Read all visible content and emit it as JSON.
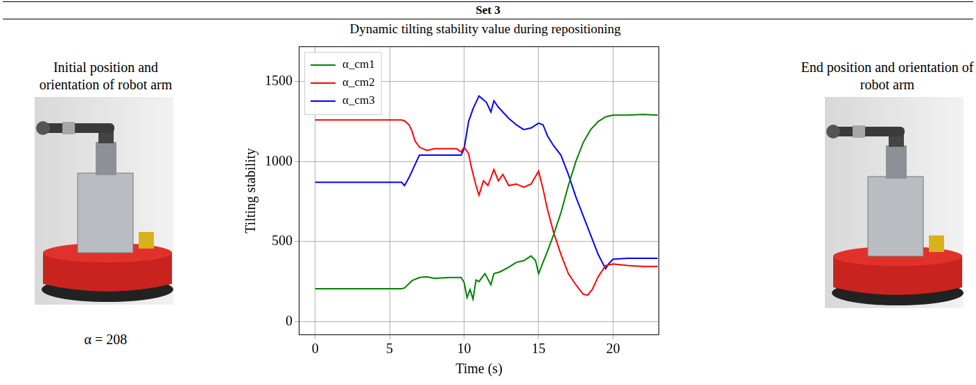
{
  "header": "Set 3",
  "left_panel": {
    "caption": "Initial position and orientation of robot arm",
    "note": "α = 208"
  },
  "right_panel": {
    "caption": "End position and orientation of robot arm"
  },
  "chart_data": {
    "type": "line",
    "title": "Dynamic tilting stability value during repositioning",
    "x_label": "Time (s)",
    "y_label": "Tilting stability",
    "xlim": [
      -1.1,
      23.1
    ],
    "xticks": [
      0,
      5,
      10,
      15,
      20
    ],
    "ylim": [
      -85,
      1720
    ],
    "yticks": [
      0,
      500,
      1000,
      1500
    ],
    "grid": true,
    "legend": "upper left",
    "series": [
      {
        "name": "α_cm1",
        "color": "#008000",
        "x": [
          0,
          5.8,
          6,
          6.5,
          7,
          7.5,
          8,
          9,
          9.8,
          10,
          10.2,
          10.4,
          10.6,
          10.8,
          11,
          11.4,
          11.8,
          12,
          12.4,
          13,
          13.5,
          14,
          14.5,
          14.8,
          15,
          15.3,
          15.6,
          16,
          16.5,
          17,
          17.5,
          18,
          18.5,
          19,
          19.5,
          20,
          21,
          22,
          23
        ],
        "values": [
          205,
          205,
          210,
          255,
          275,
          280,
          270,
          275,
          275,
          245,
          150,
          200,
          140,
          260,
          250,
          300,
          230,
          300,
          310,
          340,
          370,
          380,
          410,
          380,
          300,
          370,
          440,
          540,
          680,
          850,
          1000,
          1120,
          1200,
          1250,
          1280,
          1290,
          1290,
          1295,
          1290
        ]
      },
      {
        "name": "α_cm2",
        "color": "#ff0000",
        "x": [
          0,
          5.8,
          6,
          6.3,
          6.5,
          6.7,
          7,
          7.5,
          8,
          9,
          9.5,
          9.8,
          10,
          10.3,
          10.5,
          10.8,
          11,
          11.3,
          11.6,
          12,
          12.3,
          12.6,
          13,
          13.5,
          14,
          14.5,
          15,
          15.3,
          15.6,
          16,
          16.5,
          17,
          17.5,
          18,
          18.3,
          18.6,
          19,
          19.5,
          20,
          21,
          22,
          23
        ],
        "values": [
          1260,
          1260,
          1255,
          1230,
          1190,
          1130,
          1090,
          1070,
          1080,
          1080,
          1080,
          1060,
          1090,
          1050,
          960,
          850,
          790,
          880,
          850,
          950,
          880,
          920,
          850,
          860,
          840,
          860,
          940,
          830,
          700,
          560,
          420,
          300,
          230,
          170,
          165,
          200,
          280,
          350,
          360,
          350,
          345,
          345
        ]
      },
      {
        "name": "α_cm3",
        "color": "#0000ff",
        "x": [
          0,
          5.8,
          6,
          6.3,
          6.6,
          7,
          8,
          9,
          9.8,
          10,
          10.3,
          10.6,
          11,
          11.5,
          11.8,
          12,
          12.3,
          12.6,
          13,
          13.5,
          14,
          14.5,
          15,
          15.3,
          15.6,
          16,
          16.5,
          17,
          17.5,
          18,
          18.5,
          19,
          19.5,
          19.7,
          20,
          21,
          22,
          23
        ],
        "values": [
          870,
          870,
          850,
          900,
          960,
          1040,
          1040,
          1040,
          1040,
          1080,
          1250,
          1330,
          1410,
          1370,
          1310,
          1380,
          1340,
          1310,
          1270,
          1230,
          1200,
          1210,
          1240,
          1230,
          1160,
          1100,
          1040,
          920,
          780,
          660,
          540,
          420,
          330,
          360,
          390,
          395,
          395,
          395
        ]
      }
    ]
  }
}
